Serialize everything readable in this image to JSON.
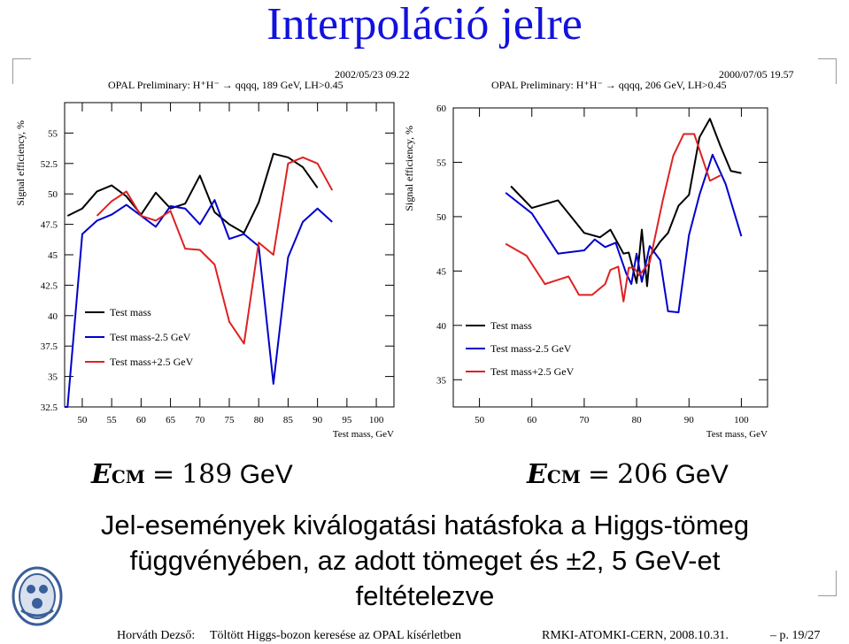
{
  "slide_title": "Interpoláció jelre",
  "left_header": {
    "datetime": "2002/05/23   09.22",
    "label": "OPAL Preliminary: H⁺H⁻ → qqqq, 189 GeV, LH>0.45"
  },
  "right_header": {
    "datetime": "2000/07/05   19.57",
    "label": "OPAL Preliminary: H⁺H⁻ → qqqq, 206 GeV, LH>0.45"
  },
  "chart_data": [
    {
      "type": "line",
      "ylabel": "Signal efficiency, %",
      "xlabel": "Test mass, GeV",
      "xlim": [
        47,
        103
      ],
      "ylim": [
        32.5,
        57.5
      ],
      "x_ticks": [
        50,
        55,
        60,
        65,
        70,
        75,
        80,
        85,
        90,
        95,
        100
      ],
      "y_ticks": [
        32.5,
        35,
        37.5,
        40,
        42.5,
        45,
        47.5,
        50,
        52.5,
        55
      ],
      "legend_position": "lower-left",
      "series": [
        {
          "name": "Test mass",
          "color": "#000000",
          "points": [
            [
              47.5,
              48.2
            ],
            [
              50,
              48.8
            ],
            [
              52.5,
              50.2
            ],
            [
              55,
              50.7
            ],
            [
              57.5,
              49.8
            ],
            [
              60,
              48.3
            ],
            [
              62.5,
              50.1
            ],
            [
              65,
              48.8
            ],
            [
              67.5,
              49.2
            ],
            [
              70,
              51.5
            ],
            [
              72.5,
              48.5
            ],
            [
              75,
              47.5
            ],
            [
              77.5,
              46.8
            ],
            [
              80,
              49.3
            ],
            [
              82.5,
              53.3
            ],
            [
              85,
              53
            ],
            [
              87.5,
              52.2
            ],
            [
              90,
              50.5
            ]
          ]
        },
        {
          "name": "Test mass-2.5 GeV",
          "color": "#0000cc",
          "points": [
            [
              45,
              32.5
            ],
            [
              47.5,
              32.5
            ],
            [
              50,
              46.7
            ],
            [
              52.5,
              47.8
            ],
            [
              55,
              48.3
            ],
            [
              57.5,
              49.1
            ],
            [
              60,
              48.2
            ],
            [
              62.5,
              47.3
            ],
            [
              65,
              49
            ],
            [
              67.5,
              48.8
            ],
            [
              70,
              47.5
            ],
            [
              72.5,
              49.5
            ],
            [
              75,
              46.3
            ],
            [
              77.5,
              46.7
            ],
            [
              80,
              45.7
            ],
            [
              82.5,
              34.4
            ],
            [
              85,
              44.8
            ],
            [
              87.5,
              47.7
            ],
            [
              90,
              48.8
            ],
            [
              92.5,
              47.7
            ]
          ]
        },
        {
          "name": "Test mass+2.5 GeV",
          "color": "#dd2222",
          "points": [
            [
              52.5,
              48.2
            ],
            [
              55,
              49.4
            ],
            [
              57.5,
              50.2
            ],
            [
              60,
              48.2
            ],
            [
              62.5,
              47.8
            ],
            [
              65,
              48.6
            ],
            [
              67.5,
              45.5
            ],
            [
              70,
              45.4
            ],
            [
              72.5,
              44.2
            ],
            [
              75,
              39.5
            ],
            [
              77.5,
              37.7
            ],
            [
              80,
              46
            ],
            [
              82.5,
              45
            ],
            [
              85,
              52.5
            ],
            [
              87.5,
              53
            ],
            [
              90,
              52.5
            ],
            [
              92.5,
              50.3
            ]
          ]
        }
      ]
    },
    {
      "type": "line",
      "ylabel": "Signal efficiency, %",
      "xlabel": "Test mass, GeV",
      "xlim": [
        45,
        105
      ],
      "ylim": [
        32.5,
        60
      ],
      "x_ticks": [
        50,
        60,
        70,
        80,
        90,
        100
      ],
      "y_ticks": [
        35,
        40,
        45,
        50,
        55,
        60
      ],
      "legend_position": "lower-left",
      "series": [
        {
          "name": "Test mass",
          "color": "#000000",
          "points": [
            [
              56,
              52.8
            ],
            [
              60,
              50.8
            ],
            [
              65,
              51.5
            ],
            [
              70,
              48.5
            ],
            [
              73,
              48.1
            ],
            [
              75,
              48.8
            ],
            [
              77.5,
              46.6
            ],
            [
              78.5,
              46.7
            ],
            [
              80,
              43.9
            ],
            [
              81,
              48.8
            ],
            [
              82,
              43.6
            ],
            [
              82.5,
              46.3
            ],
            [
              84.5,
              47.7
            ],
            [
              86,
              48.5
            ],
            [
              88,
              51
            ],
            [
              90,
              52
            ],
            [
              92,
              57.3
            ],
            [
              94,
              59
            ],
            [
              96,
              56.5
            ],
            [
              98,
              54.2
            ],
            [
              100,
              54
            ]
          ]
        },
        {
          "name": "Test mass-2.5 GeV",
          "color": "#0000cc",
          "points": [
            [
              55,
              52.2
            ],
            [
              60,
              50.3
            ],
            [
              65,
              46.6
            ],
            [
              70,
              46.9
            ],
            [
              72,
              47.9
            ],
            [
              74,
              47.2
            ],
            [
              76,
              47.6
            ],
            [
              78,
              44.8
            ],
            [
              79,
              43.8
            ],
            [
              80,
              46.6
            ],
            [
              81,
              44
            ],
            [
              82.5,
              47.3
            ],
            [
              84.5,
              46
            ],
            [
              86,
              41.3
            ],
            [
              88,
              41.2
            ],
            [
              90,
              48.3
            ],
            [
              92,
              52
            ],
            [
              94.5,
              55.7
            ],
            [
              97,
              53
            ],
            [
              100,
              48.2
            ]
          ]
        },
        {
          "name": "Test mass+2.5 GeV",
          "color": "#dd2222",
          "points": [
            [
              55,
              47.5
            ],
            [
              59,
              46.4
            ],
            [
              62.5,
              43.8
            ],
            [
              67,
              44.5
            ],
            [
              69,
              42.8
            ],
            [
              71.5,
              42.8
            ],
            [
              74,
              43.8
            ],
            [
              75,
              45.1
            ],
            [
              76.5,
              45.4
            ],
            [
              77.5,
              42.2
            ],
            [
              78.5,
              45.3
            ],
            [
              79.5,
              45.3
            ],
            [
              80.5,
              44.6
            ],
            [
              82.5,
              45.8
            ],
            [
              85,
              51.5
            ],
            [
              87,
              55.6
            ],
            [
              89,
              57.6
            ],
            [
              91,
              57.6
            ],
            [
              94,
              53.3
            ],
            [
              96,
              53.8
            ]
          ]
        }
      ]
    }
  ],
  "ecm_left": {
    "symbol": "E",
    "subscript": "CM",
    "equals": "=",
    "value": "189",
    "unit": "GeV"
  },
  "ecm_right": {
    "symbol": "E",
    "subscript": "CM",
    "equals": "=",
    "value": "206",
    "unit": "GeV"
  },
  "description": {
    "line1": "Jel-események kiválogatási hatásfoka a Higgs-tömeg",
    "line2": "függvényében, az adott tömeget és ±2, 5 GeV-et",
    "line3": "feltételezve"
  },
  "footer": {
    "author": "Horváth Dezső:",
    "talk": "Töltött Higgs-bozon keresése az OPAL kísérletben",
    "venue": "RMKI-ATOMKI-CERN, 2008.10.31.",
    "page": "– p. 19/27"
  },
  "colors": {
    "title": "#1212dd",
    "black": "#000000",
    "blue": "#0000cc",
    "red": "#dd2222"
  }
}
